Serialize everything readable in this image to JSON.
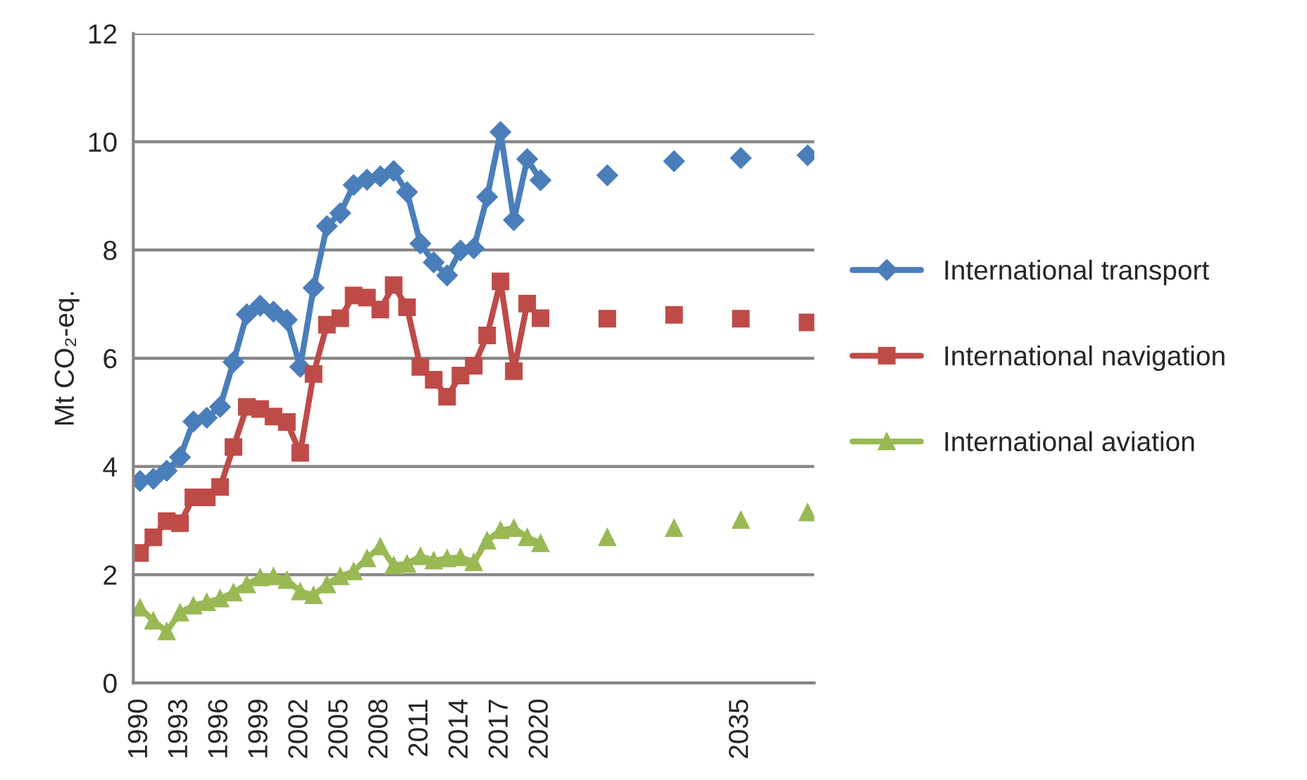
{
  "chart_data": {
    "type": "line",
    "ylabel": "Mt CO₂-eq.",
    "categories": [
      "1990",
      null,
      null,
      "1993",
      null,
      null,
      "1996",
      null,
      null,
      "1999",
      null,
      null,
      "2002",
      null,
      null,
      "2005",
      null,
      null,
      "2008",
      null,
      null,
      "2011",
      null,
      null,
      "2014",
      null,
      null,
      "2017",
      null,
      null,
      "2020",
      null,
      null,
      null,
      null,
      null,
      null,
      null,
      null,
      null,
      null,
      null,
      null,
      null,
      null,
      "2035",
      null,
      null,
      null,
      null,
      null
    ],
    "series": [
      {
        "name": "International transport",
        "color": "#4a7ebb",
        "marker": "diamond",
        "values": [
          3.73,
          3.77,
          3.92,
          4.17,
          4.83,
          4.9,
          5.1,
          5.93,
          6.81,
          6.97,
          6.86,
          6.71,
          5.84,
          7.3,
          8.44,
          8.68,
          9.2,
          9.3,
          9.36,
          9.46,
          9.07,
          8.12,
          7.77,
          7.53,
          7.99,
          8.03,
          8.98,
          10.18,
          8.55,
          9.68,
          9.29,
          null,
          null,
          null,
          null,
          9.38,
          null,
          null,
          null,
          null,
          9.64,
          null,
          null,
          null,
          null,
          9.7,
          null,
          null,
          null,
          null,
          9.75
        ]
      },
      {
        "name": "International navigation",
        "color": "#be4b48",
        "marker": "square",
        "values": [
          2.4,
          2.69,
          2.99,
          2.95,
          3.43,
          3.43,
          3.62,
          4.36,
          5.1,
          5.06,
          4.92,
          4.82,
          4.25,
          5.71,
          6.62,
          6.74,
          7.16,
          7.12,
          6.9,
          7.35,
          6.94,
          5.84,
          5.6,
          5.29,
          5.68,
          5.86,
          6.42,
          7.42,
          5.76,
          7.01,
          6.74,
          null,
          null,
          null,
          null,
          6.73,
          null,
          null,
          null,
          null,
          6.8,
          null,
          null,
          null,
          null,
          6.73,
          null,
          null,
          null,
          null,
          6.66
        ]
      },
      {
        "name": "International aviation",
        "color": "#98b954",
        "marker": "triangle",
        "values": [
          1.39,
          1.15,
          0.95,
          1.3,
          1.43,
          1.49,
          1.56,
          1.67,
          1.82,
          1.95,
          1.97,
          1.9,
          1.69,
          1.62,
          1.82,
          1.97,
          2.06,
          2.3,
          2.52,
          2.17,
          2.2,
          2.34,
          2.26,
          2.3,
          2.32,
          2.23,
          2.63,
          2.82,
          2.86,
          2.69,
          2.58,
          null,
          null,
          null,
          null,
          2.69,
          null,
          null,
          null,
          null,
          2.86,
          null,
          null,
          null,
          null,
          3.01,
          null,
          null,
          null,
          null,
          3.15
        ]
      }
    ],
    "ylim": [
      0,
      12
    ],
    "yticks": [
      0,
      2,
      4,
      6,
      8,
      10,
      12
    ],
    "grid": "y",
    "legend": "right",
    "line_style": "solid"
  }
}
